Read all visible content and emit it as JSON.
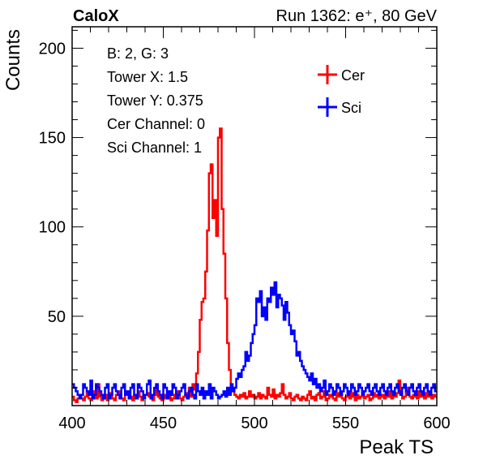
{
  "header": {
    "left_label": "CaloX",
    "right_label": "Run 1362: e⁺, 80 GeV"
  },
  "info_box": {
    "lines": [
      "B: 2, G: 3",
      "Tower X: 1.5",
      "Tower Y: 0.375",
      "Cer Channel: 0",
      "Sci Channel: 1"
    ]
  },
  "colors": {
    "cer": "#ff0000",
    "sci": "#0000ff",
    "axis": "#000000"
  },
  "chart_data": {
    "type": "line",
    "title": "",
    "xlabel": "Peak TS",
    "ylabel": "Counts",
    "xlim": [
      400,
      600
    ],
    "ylim": [
      0,
      212
    ],
    "grid": false,
    "legend_placement": "top-right",
    "x_tick_labels": [
      "400",
      "450",
      "500",
      "550",
      "600"
    ],
    "y_tick_labels": [
      "50",
      "100",
      "150",
      "200"
    ],
    "x_ticks": [
      400,
      450,
      500,
      550,
      600
    ],
    "y_ticks": [
      50,
      100,
      150,
      200
    ],
    "bin_width": 1,
    "series": [
      {
        "name": "Cer",
        "x_start": 400,
        "values": [
          5,
          3,
          2,
          4,
          6,
          4,
          3,
          5,
          7,
          4,
          3,
          6,
          8,
          4,
          12,
          5,
          3,
          4,
          6,
          3,
          5,
          7,
          4,
          3,
          6,
          8,
          5,
          4,
          3,
          6,
          7,
          4,
          5,
          3,
          6,
          4,
          8,
          5,
          3,
          4,
          6,
          7,
          5,
          4,
          3,
          6,
          9,
          5,
          4,
          3,
          6,
          4,
          5,
          7,
          3,
          4,
          6,
          5,
          8,
          4,
          3,
          5,
          6,
          7,
          10,
          5,
          12,
          9,
          18,
          30,
          48,
          58,
          60,
          75,
          98,
          130,
          135,
          105,
          115,
          95,
          150,
          155,
          110,
          85,
          60,
          35,
          20,
          10,
          8,
          6,
          5,
          4,
          6,
          5,
          7,
          4,
          5,
          8,
          5,
          6,
          4,
          5,
          7,
          4,
          6,
          5,
          4,
          10,
          6,
          5,
          9,
          4,
          6,
          5,
          7,
          12,
          6,
          4,
          5,
          7,
          4,
          3,
          5,
          6,
          4,
          3,
          5,
          4,
          3,
          6,
          8,
          4,
          5,
          3,
          6,
          7,
          4,
          5,
          8,
          3,
          4,
          6,
          5,
          4,
          3,
          7,
          5,
          6,
          4,
          3,
          5,
          6,
          4,
          7,
          5,
          3,
          6,
          4,
          5,
          8,
          4,
          5,
          6,
          3,
          4,
          7,
          5,
          6,
          4,
          5,
          6,
          4,
          7,
          5,
          8,
          4,
          6,
          5,
          7,
          14,
          6,
          4,
          5,
          7,
          10,
          5,
          4,
          6,
          5,
          4,
          8,
          5,
          6,
          4,
          7,
          5,
          6,
          4,
          6,
          5
        ]
      },
      {
        "name": "Sci",
        "x_start": 400,
        "values": [
          12,
          10,
          8,
          6,
          4,
          6,
          12,
          10,
          8,
          6,
          14,
          4,
          6,
          12,
          10,
          8,
          6,
          4,
          10,
          12,
          4,
          6,
          10,
          12,
          8,
          6,
          4,
          10,
          12,
          6,
          8,
          4,
          10,
          12,
          6,
          4,
          12,
          10,
          8,
          4,
          6,
          12,
          14,
          4,
          6,
          10,
          12,
          8,
          6,
          4,
          12,
          10,
          4,
          8,
          6,
          12,
          10,
          4,
          6,
          8,
          10,
          12,
          6,
          4,
          8,
          10,
          6,
          4,
          12,
          8,
          6,
          10,
          4,
          8,
          6,
          12,
          4,
          10,
          8,
          6,
          4,
          5,
          6,
          8,
          5,
          10,
          6,
          12,
          8,
          10,
          15,
          18,
          16,
          20,
          22,
          30,
          25,
          28,
          35,
          40,
          45,
          60,
          58,
          64,
          50,
          55,
          48,
          60,
          58,
          66,
          62,
          69,
          55,
          62,
          60,
          56,
          48,
          58,
          52,
          45,
          40,
          42,
          36,
          28,
          30,
          25,
          22,
          20,
          18,
          16,
          14,
          18,
          12,
          15,
          10,
          12,
          8,
          10,
          14,
          6,
          8,
          12,
          10,
          6,
          8,
          12,
          10,
          6,
          8,
          12,
          10,
          6,
          8,
          12,
          10,
          6,
          8,
          12,
          10,
          6,
          8,
          10,
          12,
          8,
          6,
          10,
          12,
          8,
          6,
          10,
          12,
          8,
          6,
          10,
          12,
          8,
          6,
          10,
          12,
          8,
          6,
          10,
          12,
          8,
          6,
          10,
          12,
          8,
          6,
          10,
          12,
          8,
          6,
          10,
          12,
          8,
          6,
          10,
          12,
          8
        ]
      }
    ]
  }
}
